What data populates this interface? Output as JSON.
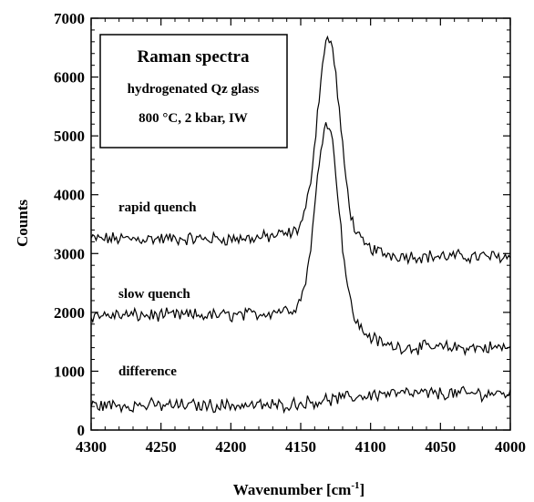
{
  "chart_data": {
    "type": "line",
    "title": "",
    "xlabel": "Wavenumber [cm",
    "xlabel_sup": "-1",
    "xlabel_end": "]",
    "ylabel": "Counts",
    "xlim": [
      4300,
      4000
    ],
    "ylim": [
      0,
      7000
    ],
    "x_reversed": true,
    "grid": false,
    "x_ticks": [
      4300,
      4250,
      4200,
      4150,
      4100,
      4050,
      4000
    ],
    "y_ticks": [
      0,
      1000,
      2000,
      3000,
      4000,
      5000,
      6000,
      7000
    ],
    "legend_box": {
      "placement": "top-left",
      "title": "Raman spectra",
      "line1": "hydrogenated Qz glass",
      "line2": "800 °C, 2 kbar, IW"
    },
    "series": [
      {
        "name": "rapid quench",
        "label": "rapid quench",
        "baseline": 3250,
        "tail": 2950,
        "peak_center": 4130,
        "peak_height": 3300,
        "peak_width": 8,
        "wing_height": 250,
        "wing_width": 22,
        "noise": 90
      },
      {
        "name": "slow quench",
        "label": "slow quench",
        "baseline": 1950,
        "tail": 1400,
        "peak_center": 4131,
        "peak_height": 3250,
        "peak_width": 8,
        "wing_height": 300,
        "wing_width": 22,
        "noise": 90
      },
      {
        "name": "difference",
        "label": "difference",
        "baseline": 420,
        "tail": 620,
        "peak_center": 4130,
        "peak_height": 0,
        "peak_width": 8,
        "wing_height": 0,
        "wing_width": 22,
        "noise": 90
      }
    ],
    "line_color": "#000000"
  }
}
